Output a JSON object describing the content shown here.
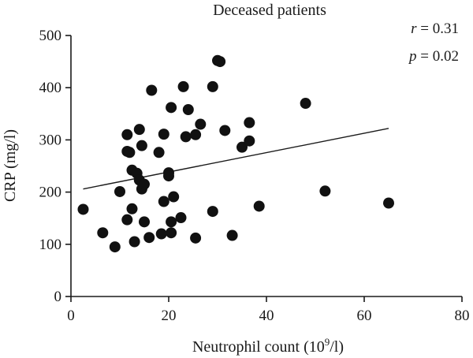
{
  "chart_data": {
    "type": "scatter",
    "title": "Deceased patients",
    "xlabel": "Neutrophil count (10",
    "xlabel_sup": "9",
    "xlabel_end": "/l)",
    "ylabel": "CRP (mg/l)",
    "xlim": [
      0,
      80
    ],
    "ylim": [
      0,
      500
    ],
    "x_ticks": [
      0,
      20,
      40,
      60,
      80
    ],
    "y_ticks": [
      0,
      100,
      200,
      300,
      400,
      500
    ],
    "x_tick_labels": [
      "0",
      "20",
      "40",
      "60",
      "80"
    ],
    "y_tick_labels": [
      "0",
      "100",
      "200",
      "300",
      "400",
      "500"
    ],
    "grid": false,
    "annotations": {
      "r_symbol": "r",
      "r_value": " = 0.31",
      "p_symbol": "p",
      "p_value": " = 0.02"
    },
    "trendline": {
      "x": [
        2.5,
        65
      ],
      "y": [
        206,
        322
      ]
    },
    "points": [
      {
        "x": 2.5,
        "y": 167
      },
      {
        "x": 6.5,
        "y": 122
      },
      {
        "x": 9,
        "y": 95
      },
      {
        "x": 10,
        "y": 201
      },
      {
        "x": 11.5,
        "y": 310
      },
      {
        "x": 11.5,
        "y": 278
      },
      {
        "x": 11.5,
        "y": 147
      },
      {
        "x": 12,
        "y": 276
      },
      {
        "x": 12.5,
        "y": 168
      },
      {
        "x": 12.5,
        "y": 242
      },
      {
        "x": 13,
        "y": 105
      },
      {
        "x": 13.5,
        "y": 236
      },
      {
        "x": 14,
        "y": 320
      },
      {
        "x": 14,
        "y": 223
      },
      {
        "x": 14.5,
        "y": 289
      },
      {
        "x": 14.5,
        "y": 206
      },
      {
        "x": 15,
        "y": 215
      },
      {
        "x": 15,
        "y": 143
      },
      {
        "x": 16,
        "y": 113
      },
      {
        "x": 16.5,
        "y": 395
      },
      {
        "x": 18,
        "y": 276
      },
      {
        "x": 18.5,
        "y": 120
      },
      {
        "x": 19,
        "y": 311
      },
      {
        "x": 19,
        "y": 182
      },
      {
        "x": 20,
        "y": 237
      },
      {
        "x": 20,
        "y": 231
      },
      {
        "x": 20.5,
        "y": 362
      },
      {
        "x": 20.5,
        "y": 143
      },
      {
        "x": 20.5,
        "y": 122
      },
      {
        "x": 21,
        "y": 191
      },
      {
        "x": 22.5,
        "y": 151
      },
      {
        "x": 23,
        "y": 402
      },
      {
        "x": 23.5,
        "y": 306
      },
      {
        "x": 24,
        "y": 358
      },
      {
        "x": 25.5,
        "y": 310
      },
      {
        "x": 25.5,
        "y": 112
      },
      {
        "x": 26.5,
        "y": 330
      },
      {
        "x": 29,
        "y": 402
      },
      {
        "x": 29,
        "y": 163
      },
      {
        "x": 30,
        "y": 452
      },
      {
        "x": 30.5,
        "y": 450
      },
      {
        "x": 31.5,
        "y": 318
      },
      {
        "x": 33,
        "y": 117
      },
      {
        "x": 35,
        "y": 286
      },
      {
        "x": 36.5,
        "y": 333
      },
      {
        "x": 36.5,
        "y": 298
      },
      {
        "x": 38.5,
        "y": 173
      },
      {
        "x": 48,
        "y": 370
      },
      {
        "x": 52,
        "y": 202
      },
      {
        "x": 65,
        "y": 179
      }
    ]
  }
}
